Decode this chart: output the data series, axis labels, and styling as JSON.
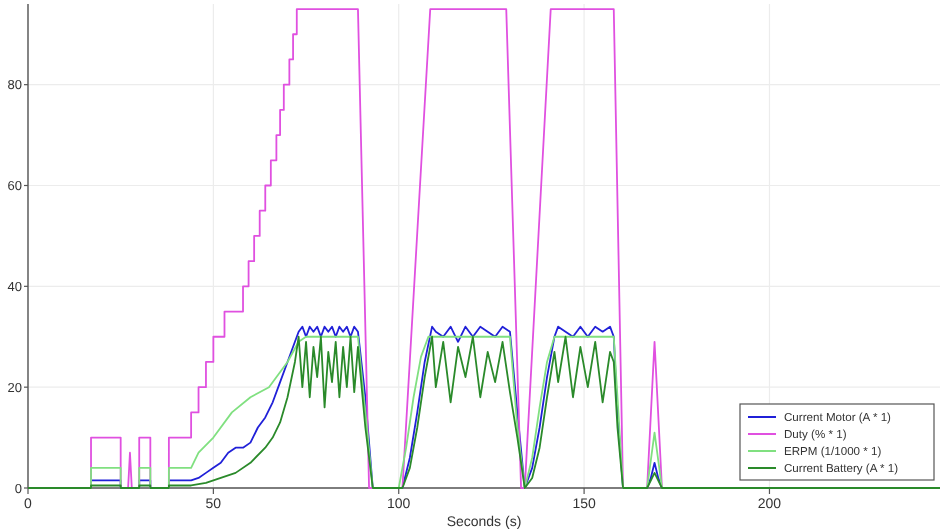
{
  "chart_data": {
    "type": "line",
    "xlabel": "Seconds (s)",
    "xlim": [
      0,
      246
    ],
    "ylim": [
      0,
      96
    ],
    "xticks": [
      0,
      50,
      100,
      150,
      200
    ],
    "yticks": [
      0,
      20,
      40,
      60,
      80
    ],
    "grid": true,
    "legend": "bottom right",
    "marker": "none",
    "line_style": "solid",
    "series": [
      {
        "name": "Current Motor (A * 1)",
        "color": "#2020d8",
        "x": [
          0,
          17,
          17,
          25,
          25,
          30,
          30,
          33,
          33,
          38,
          38,
          44,
          46,
          48,
          50,
          52,
          54,
          56,
          58,
          60,
          62,
          64,
          66,
          68,
          70,
          72,
          73,
          74,
          75,
          76,
          77,
          78,
          79,
          80,
          81,
          82,
          83,
          84,
          85,
          86,
          87,
          88,
          89,
          91,
          93,
          101,
          103,
          105,
          107,
          109,
          110,
          112,
          114,
          116,
          118,
          120,
          122,
          124,
          126,
          128,
          130,
          132,
          134,
          136,
          138,
          140,
          142,
          143,
          145,
          147,
          149,
          151,
          153,
          155,
          157,
          158,
          159,
          160.5,
          167,
          168,
          169,
          170,
          171,
          246
        ],
        "values": [
          0,
          0,
          1.5,
          1.5,
          0,
          0,
          1.5,
          1.5,
          0,
          0,
          1.5,
          1.5,
          2,
          3,
          4,
          5,
          7,
          8,
          8,
          9,
          12,
          14,
          17,
          21,
          25,
          29,
          31,
          32,
          30,
          32,
          31,
          32,
          30,
          32,
          31,
          32,
          30,
          32,
          31,
          32,
          30,
          32,
          31,
          18,
          0,
          0,
          6,
          15,
          25,
          32,
          31,
          30,
          32,
          29,
          32,
          30,
          32,
          31,
          30,
          32,
          31,
          15,
          0,
          4,
          12,
          22,
          30,
          32,
          31,
          30,
          32,
          30,
          32,
          31,
          32,
          30,
          15,
          0,
          0,
          2,
          5,
          2,
          0,
          0
        ]
      },
      {
        "name": "Duty (% * 1)",
        "color": "#e050e0",
        "x": [
          0,
          17,
          17,
          25,
          25,
          27,
          27.5,
          28,
          30,
          30,
          33,
          33,
          38,
          38,
          44,
          44,
          46,
          46,
          48,
          48,
          50,
          50,
          53,
          53,
          58,
          58,
          59.5,
          59.5,
          61,
          61,
          62.5,
          62.5,
          64,
          64,
          65.5,
          65.5,
          67,
          67,
          68,
          68,
          69,
          69,
          70.5,
          70.5,
          71.5,
          71.5,
          72.5,
          72.5,
          89,
          92,
          101,
          108.5,
          129,
          133,
          134,
          141,
          158,
          160.5,
          167,
          169,
          171,
          246
        ],
        "values": [
          0,
          0,
          10,
          10,
          0,
          0,
          7,
          0,
          0,
          10,
          10,
          0,
          0,
          10,
          10,
          15,
          15,
          20,
          20,
          25,
          25,
          30,
          30,
          35,
          35,
          40,
          40,
          45,
          45,
          50,
          50,
          55,
          55,
          60,
          60,
          65,
          65,
          70,
          70,
          75,
          75,
          80,
          80,
          85,
          85,
          90,
          90,
          95,
          95,
          0,
          0,
          95,
          95,
          0,
          0,
          95,
          95,
          0,
          0,
          29,
          0,
          0
        ]
      },
      {
        "name": "ERPM (1/1000 * 1)",
        "color": "#80e080",
        "x": [
          0,
          17,
          17,
          25,
          25,
          30,
          30,
          33,
          33,
          38,
          38,
          44,
          46,
          50,
          55,
          60,
          65,
          70,
          73,
          75,
          89,
          91,
          93,
          100,
          102,
          104,
          106,
          108,
          110,
          130,
          132,
          134,
          136,
          138,
          140,
          142,
          158,
          160.5,
          167,
          169,
          171,
          246
        ],
        "values": [
          0,
          0,
          4,
          4,
          0,
          0,
          4,
          4,
          0,
          0,
          4,
          4,
          7,
          10,
          15,
          18,
          20,
          25,
          29,
          30,
          30,
          15,
          0,
          0,
          8,
          18,
          26,
          30,
          30,
          30,
          12,
          0,
          6,
          16,
          25,
          30,
          30,
          0,
          0,
          11,
          0,
          0
        ]
      },
      {
        "name": "Current Battery (A * 1)",
        "color": "#2a8a2a",
        "x": [
          0,
          17,
          17,
          25,
          25,
          30,
          30,
          33,
          33,
          38,
          38,
          44,
          48,
          52,
          56,
          60,
          64,
          66,
          68,
          70,
          72,
          73,
          74,
          75,
          76,
          77,
          78,
          79,
          80,
          81,
          82,
          83,
          84,
          85,
          86,
          87,
          88,
          89,
          91,
          93,
          101,
          103,
          105,
          107,
          109,
          110,
          112,
          114,
          116,
          118,
          120,
          122,
          124,
          126,
          128,
          130,
          132,
          134,
          136,
          138,
          140,
          142,
          143,
          145,
          147,
          149,
          151,
          153,
          155,
          157,
          158,
          159,
          160.5,
          167,
          169,
          171,
          246
        ],
        "values": [
          0,
          0,
          0.5,
          0.5,
          0,
          0,
          0.5,
          0.5,
          0,
          0,
          0.5,
          0.5,
          1,
          2,
          3,
          5,
          8,
          10,
          13,
          18,
          25,
          30,
          20,
          29,
          18,
          28,
          22,
          30,
          16,
          27,
          21,
          29,
          18,
          28,
          20,
          30,
          19,
          28,
          12,
          0,
          0,
          4,
          12,
          22,
          30,
          20,
          29,
          17,
          28,
          22,
          30,
          18,
          27,
          21,
          29,
          19,
          10,
          0,
          2,
          8,
          18,
          27,
          21,
          30,
          18,
          28,
          20,
          29,
          17,
          27,
          25,
          12,
          0,
          0,
          3,
          0,
          0
        ]
      }
    ]
  }
}
